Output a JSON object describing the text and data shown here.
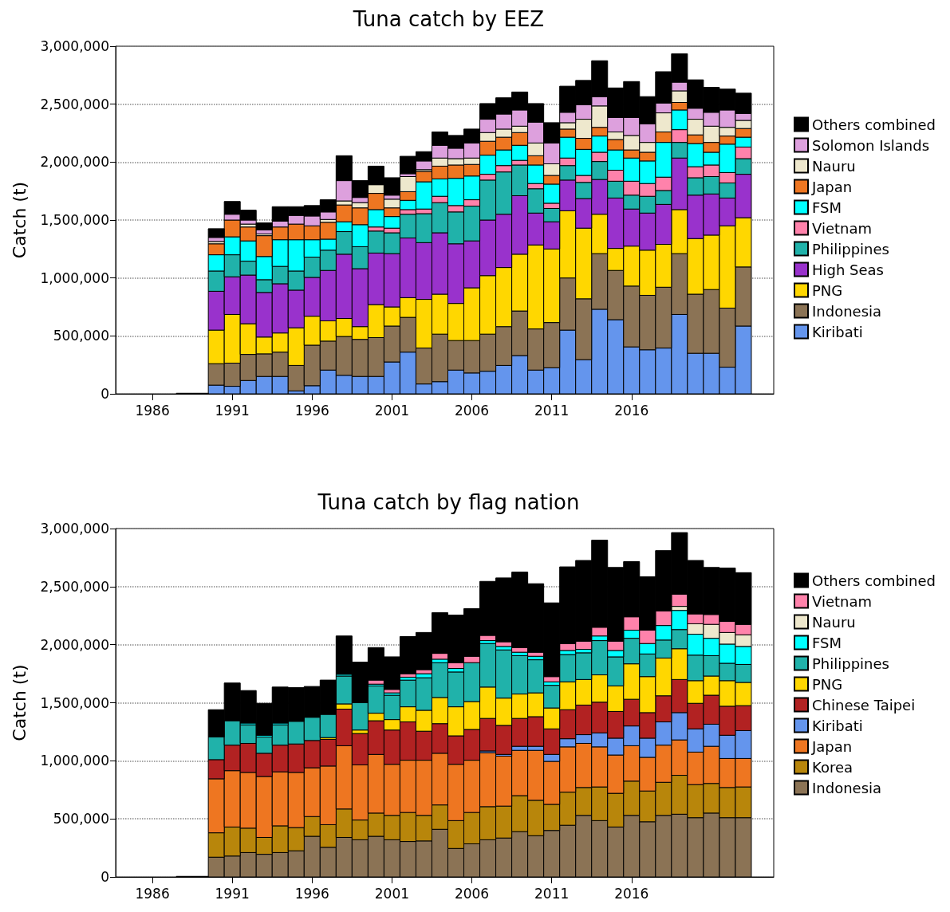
{
  "chart_data": [
    {
      "type": "bar",
      "title": "Tuna catch by EEZ",
      "ylabel": "Catch (t)",
      "stacked": true,
      "legend": "right",
      "grid": "y",
      "x": [
        1988,
        1989,
        1990,
        1991,
        1992,
        1993,
        1994,
        1995,
        1996,
        1997,
        1998,
        1999,
        2000,
        2001,
        2002,
        2003,
        2004,
        2005,
        2006,
        2007,
        2008,
        2009,
        2010,
        2011,
        2012,
        2013,
        2014,
        2015,
        2016,
        2017,
        2018,
        2019,
        2020,
        2021,
        2022,
        2023
      ],
      "xlim": [
        1983.7,
        2024.9
      ],
      "xticks": [
        1986,
        1991,
        1996,
        2001,
        2006,
        2011,
        2016
      ],
      "ylim": [
        0,
        3000000
      ],
      "yticks": [
        0,
        {
          "value": 500000,
          "label": "500,000"
        },
        {
          "value": 1000000,
          "label": "1,000,000"
        },
        {
          "value": 1500000,
          "label": "1,500,000"
        },
        {
          "value": 2000000,
          "label": "2,000,000"
        },
        {
          "value": 2500000,
          "label": "2,500,000"
        },
        {
          "value": 3000000,
          "label": "3,000,000"
        }
      ],
      "series": [
        {
          "name": "Kiribati",
          "color": "#6495ed",
          "values": [
            0,
            0,
            75000,
            65000,
            115000,
            150000,
            150000,
            25000,
            70000,
            205000,
            160000,
            150000,
            150000,
            275000,
            360000,
            85000,
            105000,
            205000,
            180000,
            195000,
            245000,
            330000,
            205000,
            225000,
            550000,
            295000,
            730000,
            640000,
            405000,
            380000,
            395000,
            685000,
            350000,
            350000,
            230000,
            585000
          ]
        },
        {
          "name": "Indonesia",
          "color": "#8b7355",
          "values": [
            0,
            0,
            185000,
            200000,
            225000,
            195000,
            210000,
            220000,
            350000,
            250000,
            335000,
            320000,
            335000,
            310000,
            300000,
            310000,
            410000,
            255000,
            280000,
            320000,
            335000,
            385000,
            355000,
            390000,
            450000,
            525000,
            480000,
            425000,
            525000,
            470000,
            525000,
            525000,
            510000,
            550000,
            510000,
            510000
          ]
        },
        {
          "name": "PNG",
          "color": "#ffd700",
          "values": [
            0,
            0,
            290000,
            420000,
            265000,
            145000,
            165000,
            325000,
            250000,
            175000,
            155000,
            110000,
            285000,
            165000,
            170000,
            420000,
            345000,
            320000,
            455000,
            505000,
            510000,
            490000,
            725000,
            635000,
            580000,
            610000,
            340000,
            190000,
            345000,
            390000,
            370000,
            380000,
            480000,
            470000,
            710000,
            425000
          ]
        },
        {
          "name": "High Seas",
          "color": "#9932cc",
          "values": [
            0,
            0,
            335000,
            325000,
            420000,
            385000,
            425000,
            325000,
            335000,
            435000,
            555000,
            500000,
            445000,
            460000,
            515000,
            490000,
            530000,
            515000,
            405000,
            480000,
            460000,
            505000,
            275000,
            235000,
            265000,
            255000,
            300000,
            435000,
            320000,
            320000,
            345000,
            445000,
            375000,
            355000,
            240000,
            375000
          ]
        },
        {
          "name": "Philippines",
          "color": "#20b2aa",
          "values": [
            0,
            0,
            175000,
            190000,
            120000,
            110000,
            150000,
            165000,
            175000,
            175000,
            195000,
            190000,
            190000,
            180000,
            205000,
            250000,
            260000,
            275000,
            300000,
            345000,
            365000,
            265000,
            210000,
            115000,
            125000,
            140000,
            155000,
            145000,
            120000,
            145000,
            120000,
            135000,
            150000,
            150000,
            130000,
            135000
          ]
        },
        {
          "name": "Vietnam",
          "color": "#ff82ab",
          "values": [
            0,
            0,
            0,
            0,
            0,
            0,
            0,
            0,
            0,
            0,
            0,
            0,
            35000,
            40000,
            40000,
            40000,
            55000,
            55000,
            55000,
            50000,
            55000,
            40000,
            45000,
            45000,
            65000,
            60000,
            80000,
            95000,
            120000,
            110000,
            115000,
            110000,
            95000,
            100000,
            90000,
            100000
          ]
        },
        {
          "name": "FSM",
          "color": "#00ffff",
          "values": [
            0,
            0,
            140000,
            155000,
            175000,
            200000,
            230000,
            270000,
            150000,
            95000,
            85000,
            190000,
            150000,
            100000,
            80000,
            235000,
            150000,
            235000,
            205000,
            165000,
            135000,
            130000,
            160000,
            165000,
            180000,
            225000,
            140000,
            175000,
            200000,
            195000,
            300000,
            170000,
            200000,
            110000,
            245000,
            85000
          ]
        },
        {
          "name": "Japan",
          "color": "#ee7621",
          "values": [
            0,
            0,
            95000,
            145000,
            120000,
            180000,
            110000,
            135000,
            120000,
            145000,
            145000,
            145000,
            140000,
            75000,
            75000,
            90000,
            110000,
            115000,
            100000,
            120000,
            110000,
            110000,
            80000,
            75000,
            70000,
            95000,
            75000,
            90000,
            70000,
            75000,
            90000,
            65000,
            75000,
            85000,
            70000,
            75000
          ]
        },
        {
          "name": "Nauru",
          "color": "#eee8cd",
          "values": [
            0,
            0,
            20000,
            0,
            25000,
            15000,
            0,
            0,
            0,
            25000,
            35000,
            45000,
            75000,
            75000,
            130000,
            15000,
            70000,
            55000,
            55000,
            75000,
            70000,
            55000,
            110000,
            100000,
            55000,
            165000,
            185000,
            65000,
            125000,
            85000,
            165000,
            100000,
            135000,
            140000,
            75000,
            70000
          ]
        },
        {
          "name": "Solomon Islands",
          "color": "#dda0dd",
          "values": [
            0,
            0,
            35000,
            50000,
            35000,
            35000,
            50000,
            75000,
            85000,
            65000,
            175000,
            45000,
            0,
            35000,
            25000,
            75000,
            110000,
            90000,
            130000,
            115000,
            130000,
            140000,
            180000,
            180000,
            90000,
            125000,
            80000,
            125000,
            155000,
            160000,
            85000,
            75000,
            95000,
            120000,
            150000,
            60000
          ]
        },
        {
          "name": "Others combined",
          "color": "#000000",
          "values": [
            5000,
            5000,
            75000,
            110000,
            85000,
            60000,
            125000,
            75000,
            90000,
            105000,
            215000,
            145000,
            160000,
            150000,
            150000,
            80000,
            115000,
            110000,
            120000,
            135000,
            140000,
            155000,
            160000,
            175000,
            225000,
            210000,
            310000,
            255000,
            310000,
            235000,
            270000,
            245000,
            245000,
            215000,
            180000,
            175000
          ]
        }
      ]
    },
    {
      "type": "bar",
      "title": "Tuna catch by flag nation",
      "ylabel": "Catch (t)",
      "stacked": true,
      "legend": "right",
      "grid": "y",
      "x": [
        1988,
        1989,
        1990,
        1991,
        1992,
        1993,
        1994,
        1995,
        1996,
        1997,
        1998,
        1999,
        2000,
        2001,
        2002,
        2003,
        2004,
        2005,
        2006,
        2007,
        2008,
        2009,
        2010,
        2011,
        2012,
        2013,
        2014,
        2015,
        2016,
        2017,
        2018,
        2019,
        2020,
        2021,
        2022,
        2023
      ],
      "xlim": [
        1983.7,
        2024.9
      ],
      "xticks": [
        1986,
        1991,
        1996,
        2001,
        2006,
        2011,
        2016
      ],
      "ylim": [
        0,
        3000000
      ],
      "yticks": [
        0,
        {
          "value": 500000,
          "label": "500,000"
        },
        {
          "value": 1000000,
          "label": "1,000,000"
        },
        {
          "value": 1500000,
          "label": "1,500,000"
        },
        {
          "value": 2000000,
          "label": "2,000,000"
        },
        {
          "value": 2500000,
          "label": "2,500,000"
        },
        {
          "value": 3000000,
          "label": "3,000,000"
        }
      ],
      "series": [
        {
          "name": "Indonesia",
          "color": "#8b7355",
          "values": [
            0,
            0,
            170000,
            180000,
            210000,
            195000,
            210000,
            225000,
            350000,
            255000,
            340000,
            320000,
            350000,
            320000,
            305000,
            310000,
            410000,
            245000,
            285000,
            320000,
            335000,
            390000,
            355000,
            400000,
            445000,
            530000,
            485000,
            430000,
            530000,
            475000,
            530000,
            540000,
            510000,
            550000,
            510000,
            510000
          ]
        },
        {
          "name": "Korea",
          "color": "#b8860b",
          "values": [
            0,
            0,
            210000,
            250000,
            210000,
            145000,
            230000,
            200000,
            170000,
            195000,
            245000,
            170000,
            200000,
            210000,
            250000,
            220000,
            210000,
            240000,
            270000,
            285000,
            275000,
            310000,
            305000,
            225000,
            285000,
            240000,
            290000,
            290000,
            295000,
            265000,
            285000,
            335000,
            285000,
            255000,
            260000,
            265000
          ]
        },
        {
          "name": "Japan",
          "color": "#ee7621",
          "values": [
            0,
            0,
            465000,
            485000,
            480000,
            525000,
            465000,
            475000,
            420000,
            505000,
            545000,
            475000,
            505000,
            440000,
            450000,
            475000,
            445000,
            485000,
            450000,
            465000,
            430000,
            390000,
            430000,
            370000,
            390000,
            380000,
            345000,
            330000,
            305000,
            290000,
            320000,
            305000,
            280000,
            320000,
            250000,
            245000
          ]
        },
        {
          "name": "Kiribati",
          "color": "#6495ed",
          "values": [
            0,
            0,
            0,
            0,
            0,
            0,
            0,
            0,
            0,
            0,
            0,
            0,
            0,
            0,
            0,
            0,
            0,
            0,
            0,
            15000,
            15000,
            35000,
            35000,
            60000,
            70000,
            75000,
            120000,
            145000,
            170000,
            165000,
            200000,
            235000,
            200000,
            190000,
            200000,
            240000
          ]
        },
        {
          "name": "Chinese Taipei",
          "color": "#b22222",
          "values": [
            0,
            0,
            165000,
            220000,
            250000,
            200000,
            230000,
            245000,
            235000,
            230000,
            315000,
            270000,
            290000,
            295000,
            330000,
            250000,
            255000,
            245000,
            265000,
            280000,
            250000,
            240000,
            255000,
            220000,
            250000,
            255000,
            265000,
            230000,
            230000,
            220000,
            225000,
            285000,
            220000,
            250000,
            250000,
            215000
          ]
        },
        {
          "name": "PNG",
          "color": "#ffd700",
          "values": [
            0,
            0,
            0,
            0,
            0,
            0,
            0,
            0,
            0,
            15000,
            45000,
            30000,
            65000,
            90000,
            130000,
            180000,
            225000,
            250000,
            240000,
            270000,
            235000,
            210000,
            205000,
            180000,
            240000,
            220000,
            235000,
            220000,
            305000,
            310000,
            325000,
            265000,
            195000,
            165000,
            220000,
            200000
          ]
        },
        {
          "name": "Philippines",
          "color": "#20b2aa",
          "values": [
            0,
            0,
            195000,
            210000,
            160000,
            140000,
            175000,
            195000,
            200000,
            200000,
            240000,
            235000,
            235000,
            210000,
            230000,
            280000,
            300000,
            300000,
            335000,
            375000,
            415000,
            330000,
            285000,
            195000,
            235000,
            230000,
            295000,
            250000,
            220000,
            195000,
            155000,
            165000,
            220000,
            175000,
            150000,
            155000
          ]
        },
        {
          "name": "FSM",
          "color": "#00ffff",
          "values": [
            0,
            0,
            0,
            0,
            15000,
            15000,
            15000,
            0,
            0,
            0,
            15000,
            0,
            15000,
            20000,
            25000,
            35000,
            30000,
            30000,
            0,
            25000,
            30000,
            30000,
            30000,
            30000,
            35000,
            30000,
            40000,
            55000,
            70000,
            90000,
            125000,
            165000,
            180000,
            150000,
            165000,
            155000
          ]
        },
        {
          "name": "Nauru",
          "color": "#eee8cd",
          "values": [
            0,
            0,
            0,
            0,
            0,
            0,
            0,
            0,
            0,
            0,
            0,
            0,
            0,
            0,
            0,
            0,
            0,
            0,
            0,
            0,
            0,
            0,
            0,
            0,
            0,
            0,
            0,
            0,
            0,
            0,
            0,
            35000,
            90000,
            120000,
            100000,
            100000
          ]
        },
        {
          "name": "Vietnam",
          "color": "#ff82ab",
          "values": [
            0,
            0,
            0,
            0,
            0,
            0,
            0,
            0,
            0,
            0,
            0,
            0,
            35000,
            30000,
            30000,
            35000,
            50000,
            50000,
            55000,
            45000,
            40000,
            40000,
            35000,
            45000,
            60000,
            70000,
            75000,
            80000,
            115000,
            115000,
            125000,
            105000,
            85000,
            85000,
            95000,
            90000
          ]
        },
        {
          "name": "Others combined",
          "color": "#000000",
          "values": [
            5000,
            5000,
            235000,
            325000,
            280000,
            275000,
            310000,
            290000,
            265000,
            295000,
            330000,
            350000,
            280000,
            280000,
            320000,
            320000,
            350000,
            410000,
            410000,
            465000,
            550000,
            650000,
            590000,
            635000,
            660000,
            695000,
            750000,
            635000,
            475000,
            460000,
            520000,
            530000,
            460000,
            405000,
            460000,
            445000
          ]
        }
      ]
    }
  ]
}
